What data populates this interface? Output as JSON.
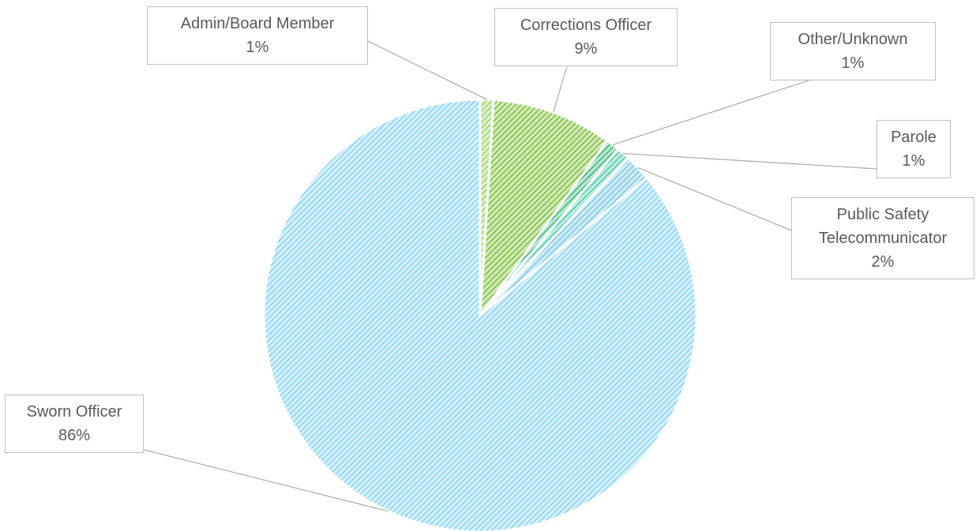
{
  "chart_data": {
    "type": "pie",
    "categories": [
      "Admin/Board Member",
      "Corrections Officer",
      "Other/Unknown",
      "Parole",
      "Public Safety Telecommunicator",
      "Sworn Officer"
    ],
    "values": [
      1,
      9,
      1,
      1,
      2,
      86
    ],
    "value_labels": [
      "1%",
      "9%",
      "1%",
      "1%",
      "2%",
      "86%"
    ],
    "colors": [
      "#9ed36a",
      "#7cbf3a",
      "#3fb87a",
      "#52c7a8",
      "#7cc7e6",
      "#86d3f2"
    ]
  }
}
